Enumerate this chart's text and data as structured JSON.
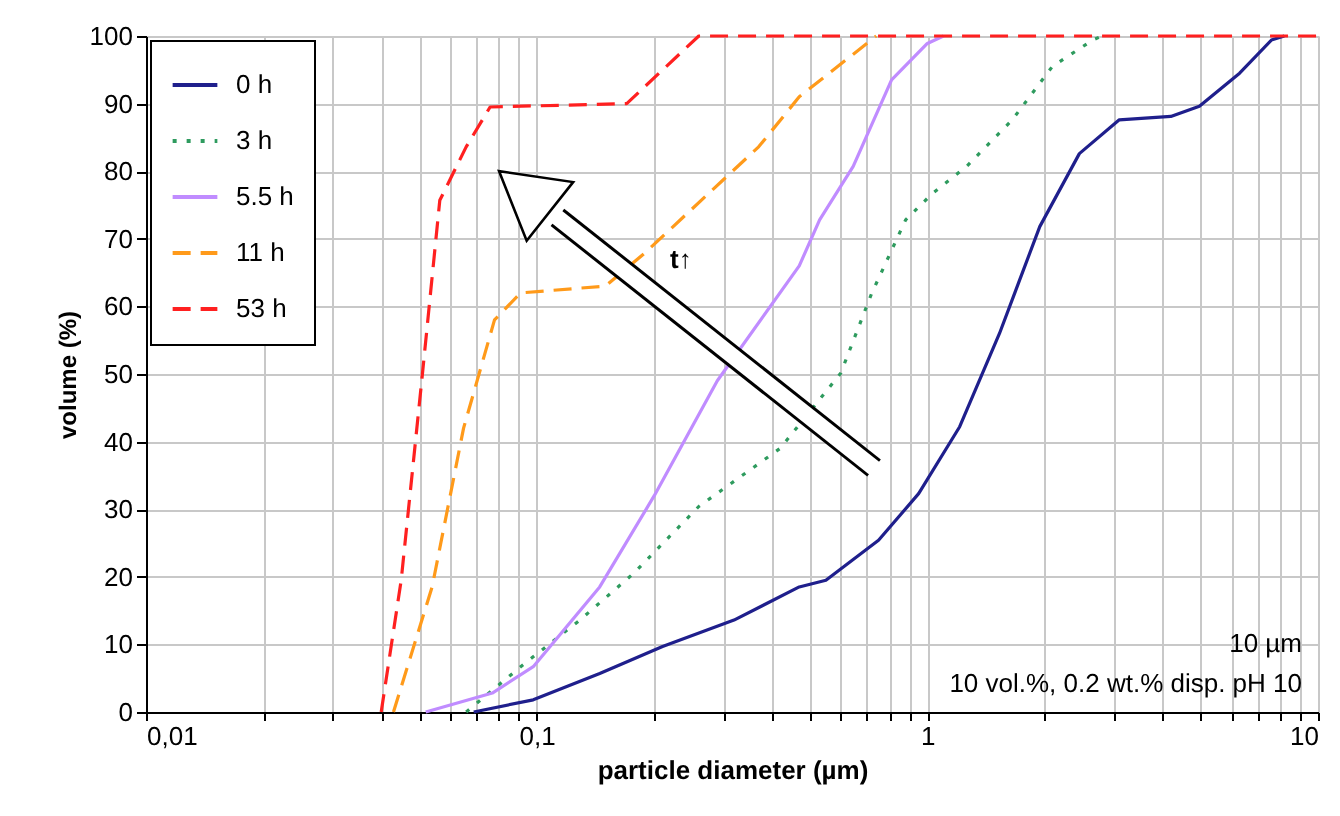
{
  "chart_data": {
    "type": "line",
    "xlabel": "particle diameter (µm)",
    "ylabel": "volume (%)",
    "log": "x",
    "xlim": [
      0.01,
      10
    ],
    "ylim": [
      0,
      100
    ],
    "xticks": [
      {
        "value": 0.01,
        "label": "0,01"
      },
      {
        "value": 0.1,
        "label": "0,1"
      },
      1,
      10
    ],
    "yticks": [
      0,
      10,
      20,
      30,
      40,
      50,
      60,
      70,
      80,
      90,
      100
    ],
    "grid": true,
    "legend": "top left",
    "annotations": [
      "t↑",
      "10 µm",
      "10 vol.%, 0.2 wt.% disp. pH 10"
    ],
    "series": [
      {
        "name": "0 h",
        "color": "#1f1f8c",
        "line_style": "solid",
        "x": [
          0.069,
          0.098,
          0.145,
          0.21,
          0.32,
          0.47,
          0.55,
          0.75,
          0.95,
          1.21,
          1.53,
          1.94,
          2.45,
          3.1,
          4.2,
          4.97,
          6.3,
          7.6,
          8.2
        ],
        "values": [
          0,
          1.8,
          5.7,
          9.7,
          13.6,
          18.5,
          19.5,
          25.4,
          32.3,
          42.2,
          56,
          71.8,
          82.6,
          87.6,
          88.1,
          89.6,
          94.5,
          99.4,
          100
        ]
      },
      {
        "name": "3 h",
        "color": "#2e9b5e",
        "line_style": "dotted",
        "x": [
          0.066,
          0.091,
          0.129,
          0.177,
          0.26,
          0.42,
          0.6,
          0.72,
          0.88,
          1.03,
          1.26,
          1.65,
          2.09,
          2.65,
          2.8
        ],
        "values": [
          0,
          6.7,
          13.6,
          20.5,
          30.4,
          39,
          50.1,
          61.9,
          72.8,
          76.7,
          80.7,
          87.6,
          95.5,
          99.4,
          100
        ]
      },
      {
        "name": "5.5 h",
        "color": "#c08cff",
        "line_style": "solid",
        "x": [
          0.052,
          0.077,
          0.098,
          0.145,
          0.2,
          0.29,
          0.47,
          0.53,
          0.646,
          0.81,
          1.0,
          1.1
        ],
        "values": [
          0,
          2.8,
          6.7,
          18.5,
          32,
          49,
          66,
          72.8,
          80.7,
          93.5,
          98.9,
          100
        ]
      },
      {
        "name": "11 h",
        "color": "#ff9a1a",
        "line_style": "dashed",
        "x": [
          0.043,
          0.054,
          0.065,
          0.078,
          0.091,
          0.15,
          0.19,
          0.3,
          0.37,
          0.47,
          0.74
        ],
        "values": [
          0,
          18.5,
          42,
          58,
          62,
          63,
          68,
          78.7,
          83.6,
          91,
          100
        ]
      },
      {
        "name": "53 h",
        "color": "#ff2020",
        "line_style": "dashed",
        "x": [
          0.04,
          0.045,
          0.051,
          0.0565,
          0.066,
          0.076,
          0.17,
          0.26,
          10
        ],
        "values": [
          0,
          19.5,
          50,
          75.7,
          83.6,
          89.5,
          90,
          100,
          100
        ]
      }
    ]
  }
}
